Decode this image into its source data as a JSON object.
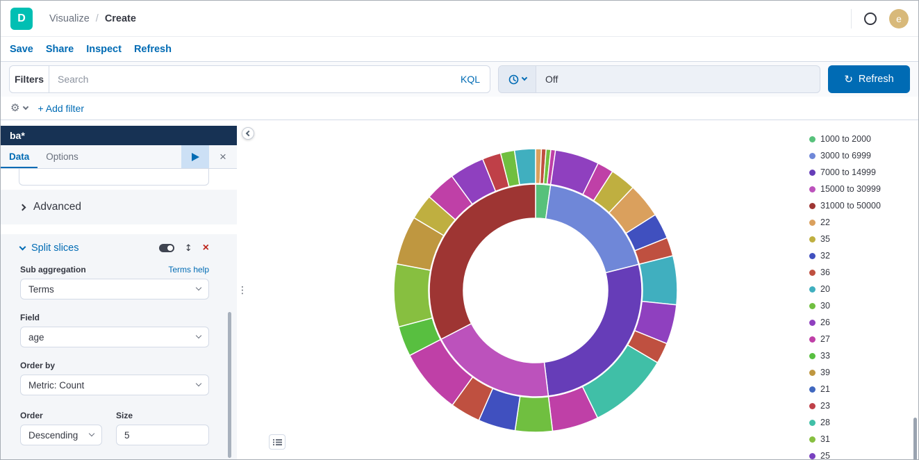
{
  "header": {
    "logo_letter": "D",
    "breadcrumb": {
      "section": "Visualize",
      "separator": "/",
      "current": "Create"
    },
    "avatar_initial": "e"
  },
  "toolbar": {
    "links": [
      "Save",
      "Share",
      "Inspect",
      "Refresh"
    ]
  },
  "query_bar": {
    "filters_label": "Filters",
    "search_placeholder": "Search",
    "language_badge": "KQL",
    "time_value": "Off",
    "refresh_label": "Refresh"
  },
  "filter_row": {
    "add_filter_label": "+ Add filter"
  },
  "sidebar": {
    "index_pattern": "ba*",
    "tabs": {
      "data": "Data",
      "options": "Options"
    },
    "custom_input_value": "",
    "advanced_label": "Advanced",
    "split_slices": {
      "title": "Split slices",
      "sub_aggregation_label": "Sub aggregation",
      "terms_help_label": "Terms help",
      "sub_aggregation_value": "Terms",
      "field_label": "Field",
      "field_value": "age",
      "order_by_label": "Order by",
      "order_by_value": "Metric: Count",
      "order_label": "Order",
      "order_value": "Descending",
      "size_label": "Size",
      "size_value": "5"
    }
  },
  "colors": {
    "accent": "#006BB4",
    "logo_teal": "#00bfb3",
    "index_header_navy": "#173254",
    "remove_red": "#bd271e"
  },
  "legend": {
    "items": [
      {
        "label": "1000 to 2000",
        "color": "#57c17b"
      },
      {
        "label": "3000 to 6999",
        "color": "#6f87d8"
      },
      {
        "label": "7000 to 14999",
        "color": "#663db8"
      },
      {
        "label": "15000 to 30999",
        "color": "#bc52bc"
      },
      {
        "label": "31000 to 50000",
        "color": "#9e3533"
      },
      {
        "label": "22",
        "color": "#daa05d"
      },
      {
        "label": "35",
        "color": "#bfaf40"
      },
      {
        "label": "32",
        "color": "#4050bf"
      },
      {
        "label": "36",
        "color": "#bf5040"
      },
      {
        "label": "20",
        "color": "#40afbf"
      },
      {
        "label": "30",
        "color": "#70bf40"
      },
      {
        "label": "26",
        "color": "#8f40bf"
      },
      {
        "label": "27",
        "color": "#bf40a7"
      },
      {
        "label": "33",
        "color": "#58bf40"
      },
      {
        "label": "39",
        "color": "#bf9740"
      },
      {
        "label": "21",
        "color": "#4068bf"
      },
      {
        "label": "23",
        "color": "#bf4048"
      },
      {
        "label": "28",
        "color": "#40bfa7"
      },
      {
        "label": "31",
        "color": "#87bf40"
      },
      {
        "label": "25",
        "color": "#7840bf"
      }
    ]
  },
  "chart_data": {
    "type": "pie",
    "variant": "donut-sunburst",
    "title": "",
    "legend_position": "right",
    "inner_ring": [
      {
        "label": "1000 to 2000",
        "color": "#57c17b",
        "value": 1.7
      },
      {
        "label": "3000 to 6999",
        "color": "#6f87d8",
        "value": 14.2
      },
      {
        "label": "7000 to 14999",
        "color": "#663db8",
        "value": 20.4
      },
      {
        "label": "15000 to 30999",
        "color": "#bc52bc",
        "value": 14.6
      },
      {
        "label": "31000 to 50000",
        "color": "#9e3533",
        "value": 24.6
      }
    ],
    "outer_ring": [
      {
        "label": "22",
        "color": "#daa05d",
        "value": 0.5
      },
      {
        "label": "36",
        "color": "#bf5040",
        "value": 0.4
      },
      {
        "label": "30",
        "color": "#70bf40",
        "value": 0.4
      },
      {
        "label": "27",
        "color": "#bf40a7",
        "value": 0.4
      },
      {
        "label": "26",
        "color": "#8f40bf",
        "value": 3.8
      },
      {
        "label": "27",
        "color": "#bf40a7",
        "value": 1.4
      },
      {
        "label": "35",
        "color": "#bfaf40",
        "value": 2.2
      },
      {
        "label": "22",
        "color": "#daa05d",
        "value": 3.0
      },
      {
        "label": "32",
        "color": "#4050bf",
        "value": 2.2
      },
      {
        "label": "36",
        "color": "#bf5040",
        "value": 1.6
      },
      {
        "label": "20",
        "color": "#40afbf",
        "value": 4.2
      },
      {
        "label": "26",
        "color": "#8f40bf",
        "value": 3.4
      },
      {
        "label": "36",
        "color": "#bf5040",
        "value": 1.8
      },
      {
        "label": "28",
        "color": "#40bfa7",
        "value": 7.0
      },
      {
        "label": "27",
        "color": "#bf40a7",
        "value": 4.0
      },
      {
        "label": "30",
        "color": "#70bf40",
        "value": 3.2
      },
      {
        "label": "32",
        "color": "#4050bf",
        "value": 3.2
      },
      {
        "label": "36",
        "color": "#bf5040",
        "value": 2.6
      },
      {
        "label": "27",
        "color": "#bf40a7",
        "value": 5.6
      },
      {
        "label": "33",
        "color": "#58bf40",
        "value": 2.6
      },
      {
        "label": "31",
        "color": "#87bf40",
        "value": 5.4
      },
      {
        "label": "39",
        "color": "#bf9740",
        "value": 4.2
      },
      {
        "label": "35",
        "color": "#bfaf40",
        "value": 2.2
      },
      {
        "label": "27",
        "color": "#bf40a7",
        "value": 2.6
      },
      {
        "label": "26",
        "color": "#8f40bf",
        "value": 3.0
      },
      {
        "label": "23",
        "color": "#bf4048",
        "value": 1.6
      },
      {
        "label": "30",
        "color": "#70bf40",
        "value": 1.2
      },
      {
        "label": "20",
        "color": "#40afbf",
        "value": 1.8
      }
    ]
  }
}
